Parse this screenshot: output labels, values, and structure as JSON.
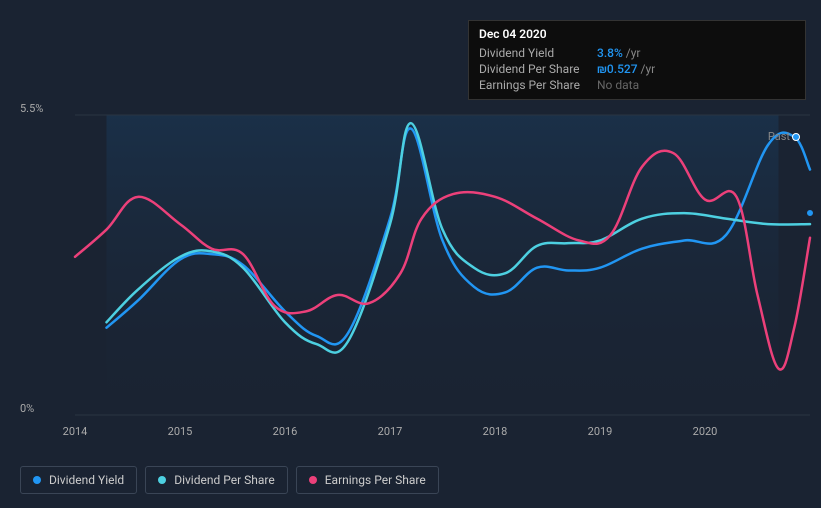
{
  "tooltip": {
    "date": "Dec 04 2020",
    "rows": [
      {
        "label": "Dividend Yield",
        "value": "3.8%",
        "unit": "/yr",
        "nodata": false
      },
      {
        "label": "Dividend Per Share",
        "value": "₪0.527",
        "unit": "/yr",
        "nodata": false
      },
      {
        "label": "Earnings Per Share",
        "value": "No data",
        "unit": "",
        "nodata": true
      }
    ]
  },
  "chart": {
    "type": "line",
    "background_color": "#1a2332",
    "plot_fill_start": "#1b3a5a",
    "plot_fill_end": "#1a2332",
    "grid_color": "#2a3442",
    "y_axis": {
      "min": 0,
      "max": 5.5,
      "labels": [
        {
          "value": "5.5%",
          "pos": 0
        },
        {
          "value": "0%",
          "pos": 1
        }
      ]
    },
    "x_axis": {
      "min": 2014,
      "max": 2021,
      "ticks": [
        "2014",
        "2015",
        "2016",
        "2017",
        "2018",
        "2019",
        "2020"
      ]
    },
    "past_label": "Past",
    "series": [
      {
        "name": "Dividend Yield",
        "color": "#2196f3",
        "width": 2.5,
        "points": [
          [
            2014.3,
            1.6
          ],
          [
            2014.6,
            2.1
          ],
          [
            2015.0,
            2.85
          ],
          [
            2015.3,
            2.95
          ],
          [
            2015.6,
            2.75
          ],
          [
            2016.0,
            1.9
          ],
          [
            2016.3,
            1.45
          ],
          [
            2016.6,
            1.5
          ],
          [
            2017.0,
            3.6
          ],
          [
            2017.2,
            5.25
          ],
          [
            2017.5,
            3.2
          ],
          [
            2017.8,
            2.35
          ],
          [
            2018.1,
            2.25
          ],
          [
            2018.4,
            2.7
          ],
          [
            2018.7,
            2.65
          ],
          [
            2019.0,
            2.7
          ],
          [
            2019.4,
            3.05
          ],
          [
            2019.8,
            3.2
          ],
          [
            2020.2,
            3.3
          ],
          [
            2020.6,
            4.95
          ],
          [
            2020.85,
            5.1
          ],
          [
            2021.0,
            4.5
          ]
        ],
        "end_dot_y": 3.5
      },
      {
        "name": "Dividend Per Share",
        "color": "#4dd0e1",
        "width": 2.5,
        "points": [
          [
            2014.3,
            1.7
          ],
          [
            2014.6,
            2.3
          ],
          [
            2015.0,
            2.9
          ],
          [
            2015.3,
            3.0
          ],
          [
            2015.6,
            2.7
          ],
          [
            2016.0,
            1.7
          ],
          [
            2016.3,
            1.3
          ],
          [
            2016.6,
            1.35
          ],
          [
            2017.0,
            3.5
          ],
          [
            2017.2,
            5.35
          ],
          [
            2017.5,
            3.4
          ],
          [
            2017.8,
            2.7
          ],
          [
            2018.1,
            2.6
          ],
          [
            2018.4,
            3.1
          ],
          [
            2018.7,
            3.15
          ],
          [
            2019.0,
            3.2
          ],
          [
            2019.4,
            3.6
          ],
          [
            2019.8,
            3.7
          ],
          [
            2020.2,
            3.6
          ],
          [
            2020.6,
            3.5
          ],
          [
            2021.0,
            3.5
          ]
        ]
      },
      {
        "name": "Earnings Per Share",
        "color": "#ec407a",
        "width": 2.5,
        "points": [
          [
            2014.0,
            2.9
          ],
          [
            2014.3,
            3.4
          ],
          [
            2014.6,
            4.0
          ],
          [
            2015.0,
            3.5
          ],
          [
            2015.3,
            3.05
          ],
          [
            2015.6,
            2.95
          ],
          [
            2015.9,
            2.0
          ],
          [
            2016.2,
            1.9
          ],
          [
            2016.5,
            2.2
          ],
          [
            2016.8,
            2.05
          ],
          [
            2017.1,
            2.6
          ],
          [
            2017.3,
            3.6
          ],
          [
            2017.6,
            4.05
          ],
          [
            2018.0,
            4.0
          ],
          [
            2018.4,
            3.6
          ],
          [
            2018.8,
            3.2
          ],
          [
            2019.1,
            3.3
          ],
          [
            2019.4,
            4.55
          ],
          [
            2019.7,
            4.8
          ],
          [
            2020.0,
            3.95
          ],
          [
            2020.3,
            4.0
          ],
          [
            2020.5,
            2.2
          ],
          [
            2020.7,
            0.85
          ],
          [
            2020.85,
            1.6
          ],
          [
            2021.0,
            3.25
          ]
        ]
      }
    ]
  },
  "legend": [
    {
      "label": "Dividend Yield",
      "color": "#2196f3"
    },
    {
      "label": "Dividend Per Share",
      "color": "#4dd0e1"
    },
    {
      "label": "Earnings Per Share",
      "color": "#ec407a"
    }
  ]
}
